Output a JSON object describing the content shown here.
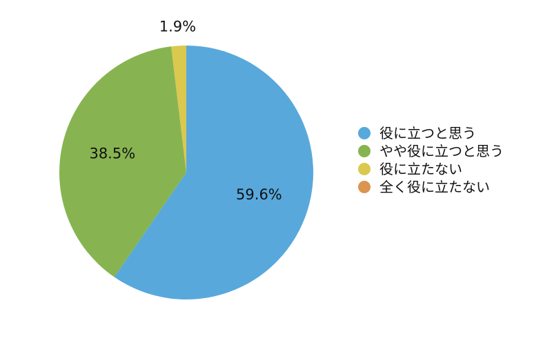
{
  "chart_data": {
    "type": "pie",
    "title": "",
    "slices": [
      {
        "label": "役に立つと思う",
        "value": 59.6,
        "display": "59.6%",
        "color": "#58a8dc"
      },
      {
        "label": "やや役に立つと思う",
        "value": 38.5,
        "display": "38.5%",
        "color": "#87b451"
      },
      {
        "label": "役に立たない",
        "value": 1.9,
        "display": "1.9%",
        "color": "#dbc84e"
      },
      {
        "label": "全く役に立たない",
        "value": 0,
        "display": "",
        "color": "#db9550"
      }
    ],
    "start_angle": "12 o'clock",
    "direction": "clockwise",
    "legend_position": "right"
  }
}
